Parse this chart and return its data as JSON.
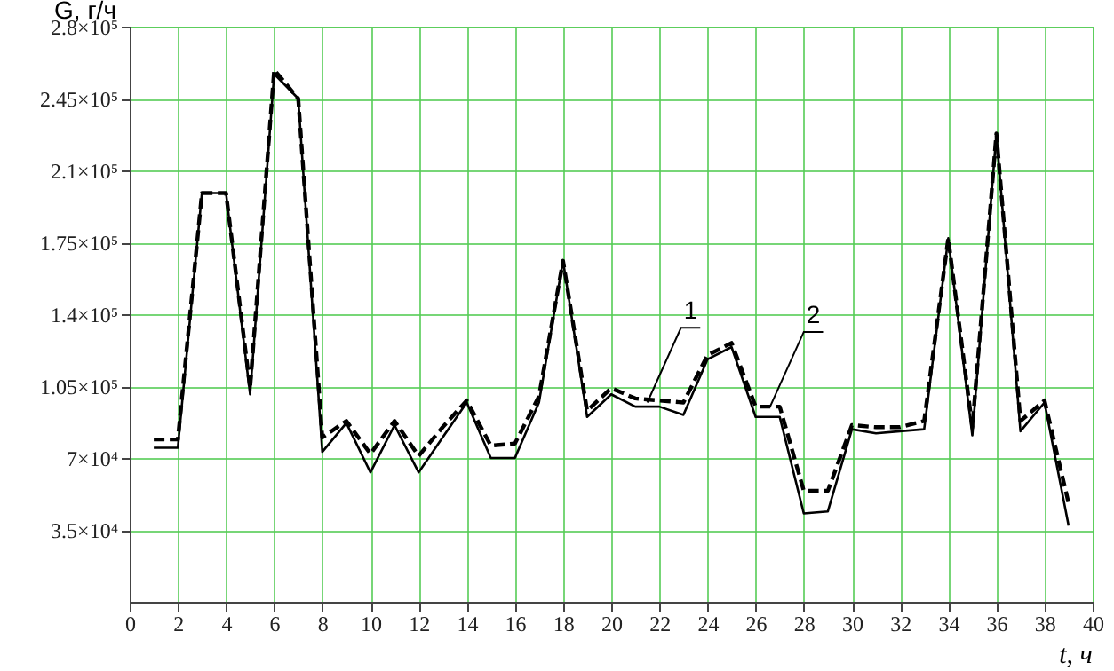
{
  "chart_data": {
    "type": "line",
    "xlabel": "t, ч",
    "ylabel": "G, г/ч",
    "x": [
      1,
      2,
      3,
      4,
      5,
      6,
      7,
      8,
      9,
      10,
      11,
      12,
      13,
      14,
      15,
      16,
      17,
      18,
      19,
      20,
      21,
      22,
      23,
      24,
      25,
      26,
      27,
      28,
      29,
      30,
      31,
      32,
      33,
      34,
      35,
      36,
      37,
      38,
      39
    ],
    "series": [
      {
        "color": "#000000",
        "line_style": "solid",
        "values": [
          75000,
          75000,
          199000,
          199000,
          101000,
          257000,
          245000,
          73000,
          87000,
          63000,
          86000,
          63000,
          80000,
          97000,
          70000,
          70000,
          97000,
          166000,
          90000,
          101000,
          95000,
          95000,
          91000,
          118000,
          124000,
          90000,
          90000,
          43000,
          44000,
          84000,
          82000,
          83000,
          84000,
          177000,
          81000,
          228000,
          83000,
          97000,
          37000
        ]
      },
      {
        "color": "#000000",
        "line_style": "dashed",
        "values": [
          79000,
          79000,
          199000,
          199000,
          104000,
          259000,
          245000,
          80000,
          88000,
          72000,
          88000,
          71000,
          85000,
          98000,
          76000,
          77000,
          100000,
          166000,
          93000,
          104000,
          99000,
          98000,
          97000,
          120000,
          126000,
          95000,
          95000,
          54000,
          54000,
          86000,
          85000,
          85000,
          88000,
          177000,
          85000,
          228000,
          88000,
          98000,
          48000
        ]
      }
    ],
    "xlim": [
      0,
      40
    ],
    "xticks": [
      0,
      2,
      4,
      6,
      8,
      10,
      12,
      14,
      16,
      18,
      20,
      22,
      24,
      26,
      28,
      30,
      32,
      34,
      36,
      38,
      40
    ],
    "ylim": [
      0,
      280000
    ],
    "yticks": [
      {
        "value": 35000,
        "label": "3.5×10⁴"
      },
      {
        "value": 70000,
        "label": "7×10⁴"
      },
      {
        "value": 105000,
        "label": "1.05×10⁵"
      },
      {
        "value": 140000,
        "label": "1.4×10⁵"
      },
      {
        "value": 175000,
        "label": "1.75×10⁵"
      },
      {
        "value": 210000,
        "label": "2.1×10⁵"
      },
      {
        "value": 245000,
        "label": "2.45×10⁵"
      },
      {
        "value": 280000,
        "label": "2.8×10⁵"
      }
    ],
    "grid": true,
    "marker": "none",
    "annotations": [
      {
        "text": "1",
        "x": 21.5,
        "y": 97000
      },
      {
        "text": "2",
        "x": 26.6,
        "y": 95000
      }
    ]
  }
}
